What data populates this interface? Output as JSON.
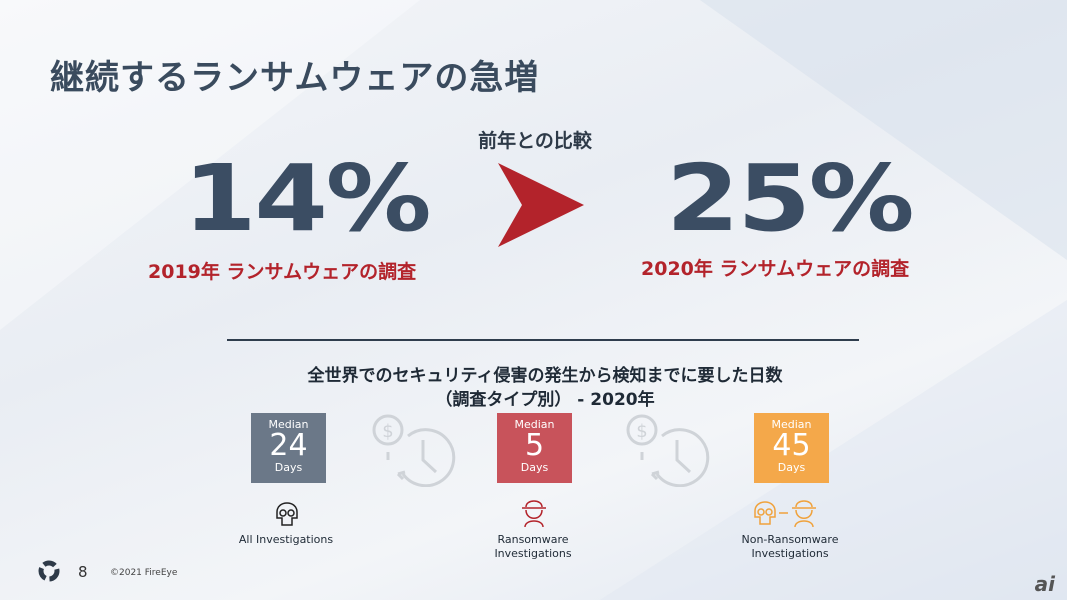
{
  "title": "継続するランサムウェアの急増",
  "comparison_label": "前年との比較",
  "stats": [
    {
      "value": "14%",
      "label": "2019年 ランサムウェアの調査"
    },
    {
      "value": "25%",
      "label": "2020年 ランサムウェアの調査"
    }
  ],
  "subtitle": {
    "line1": "全世界でのセキュリティ侵害の発生から検知までに要した日数",
    "line2": "（調査タイプ別） - 2020年"
  },
  "medians": [
    {
      "top": "Median",
      "value": "24",
      "unit": "Days",
      "caption": "All Investigations",
      "color": "#6b7888",
      "icon": "skull-icon"
    },
    {
      "top": "Median",
      "value": "5",
      "unit": "Days",
      "caption": "Ransomware Investigations",
      "color": "#c8535b",
      "icon": "spy-icon"
    },
    {
      "top": "Median",
      "value": "45",
      "unit": "Days",
      "caption": "Non-Ransomware Investigations",
      "color": "#f4a84a",
      "icon": "skull-spy-icon"
    }
  ],
  "colors": {
    "title": "#3a4b5e",
    "accent_red": "#b3232b"
  },
  "footer": {
    "page": "8",
    "copyright": "©2021 FireEye"
  },
  "watermark": "ai"
}
